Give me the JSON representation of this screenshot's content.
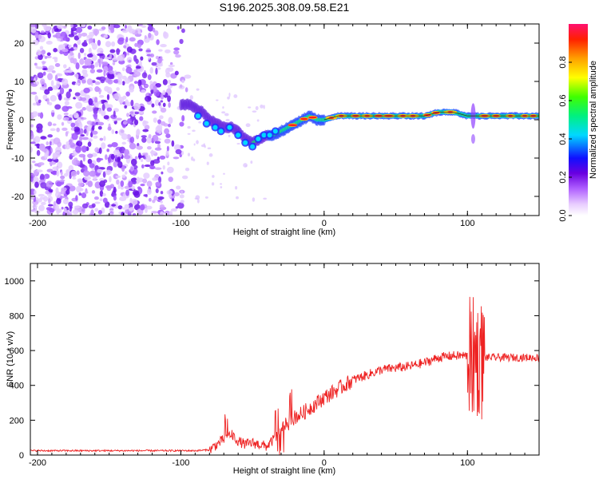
{
  "title": "S196.2025.308.09.58.E21",
  "chart_data": [
    {
      "type": "heatmap",
      "xlabel": "Height of straight line (km)",
      "ylabel": "Frequency (Hz)",
      "xlim": [
        -205,
        150
      ],
      "ylim": [
        -25,
        25
      ],
      "xticks": [
        -200,
        -100,
        0,
        100
      ],
      "yticks": [
        -20,
        -10,
        0,
        10,
        20
      ],
      "colorbar": {
        "label": "Normalized spectral amplitude",
        "range": [
          0,
          1
        ],
        "ticks": [
          0.0,
          0.2,
          0.4,
          0.6,
          0.8
        ],
        "tick_labels": [
          "0.0",
          "0.2",
          "0.4",
          "0.6",
          "0.8"
        ]
      },
      "ridge": [
        {
          "x": -100,
          "f": 4
        },
        {
          "x": -95,
          "f": 4
        },
        {
          "x": -90,
          "f": 3
        },
        {
          "x": -85,
          "f": 2
        },
        {
          "x": -80,
          "f": 0
        },
        {
          "x": -75,
          "f": -1
        },
        {
          "x": -70,
          "f": -2
        },
        {
          "x": -65,
          "f": -2
        },
        {
          "x": -60,
          "f": -3
        },
        {
          "x": -55,
          "f": -5
        },
        {
          "x": -50,
          "f": -6
        },
        {
          "x": -45,
          "f": -5
        },
        {
          "x": -40,
          "f": -4
        },
        {
          "x": -35,
          "f": -4
        },
        {
          "x": -30,
          "f": -3
        },
        {
          "x": -25,
          "f": -2
        },
        {
          "x": -20,
          "f": -1
        },
        {
          "x": -15,
          "f": 0
        },
        {
          "x": -10,
          "f": 1
        },
        {
          "x": -5,
          "f": 0
        },
        {
          "x": 0,
          "f": 0
        },
        {
          "x": 10,
          "f": 1
        },
        {
          "x": 20,
          "f": 1
        },
        {
          "x": 30,
          "f": 1
        },
        {
          "x": 40,
          "f": 1
        },
        {
          "x": 50,
          "f": 1
        },
        {
          "x": 60,
          "f": 1
        },
        {
          "x": 70,
          "f": 1
        },
        {
          "x": 80,
          "f": 2
        },
        {
          "x": 90,
          "f": 2
        },
        {
          "x": 100,
          "f": 1
        },
        {
          "x": 105,
          "f": 1
        },
        {
          "x": 110,
          "f": 1
        },
        {
          "x": 120,
          "f": 1
        },
        {
          "x": 130,
          "f": 1
        },
        {
          "x": 140,
          "f": 1
        },
        {
          "x": 150,
          "f": 1
        }
      ]
    },
    {
      "type": "line",
      "xlabel": "Height of straight line (km)",
      "ylabel": "SNR (10 * v/v)",
      "xlim": [
        -205,
        150
      ],
      "ylim": [
        0,
        1100
      ],
      "xticks": [
        -200,
        -100,
        0,
        100
      ],
      "yticks": [
        0,
        200,
        400,
        600,
        800,
        1000
      ],
      "series": [
        {
          "name": "SNR",
          "color": "#ee2222",
          "points": [
            {
              "x": -205,
              "y": 25
            },
            {
              "x": -200,
              "y": 25
            },
            {
              "x": -180,
              "y": 25
            },
            {
              "x": -160,
              "y": 25
            },
            {
              "x": -140,
              "y": 25
            },
            {
              "x": -120,
              "y": 25
            },
            {
              "x": -100,
              "y": 25
            },
            {
              "x": -90,
              "y": 25
            },
            {
              "x": -80,
              "y": 30
            },
            {
              "x": -75,
              "y": 60
            },
            {
              "x": -70,
              "y": 90
            },
            {
              "x": -65,
              "y": 120
            },
            {
              "x": -60,
              "y": 80
            },
            {
              "x": -55,
              "y": 60
            },
            {
              "x": -50,
              "y": 70
            },
            {
              "x": -45,
              "y": 60
            },
            {
              "x": -40,
              "y": 50
            },
            {
              "x": -35,
              "y": 90
            },
            {
              "x": -30,
              "y": 150
            },
            {
              "x": -25,
              "y": 180
            },
            {
              "x": -20,
              "y": 220
            },
            {
              "x": -15,
              "y": 240
            },
            {
              "x": -10,
              "y": 270
            },
            {
              "x": -5,
              "y": 300
            },
            {
              "x": 0,
              "y": 330
            },
            {
              "x": 10,
              "y": 380
            },
            {
              "x": 20,
              "y": 430
            },
            {
              "x": 30,
              "y": 460
            },
            {
              "x": 40,
              "y": 490
            },
            {
              "x": 50,
              "y": 500
            },
            {
              "x": 60,
              "y": 510
            },
            {
              "x": 70,
              "y": 530
            },
            {
              "x": 80,
              "y": 560
            },
            {
              "x": 90,
              "y": 570
            },
            {
              "x": 100,
              "y": 570
            },
            {
              "x": 110,
              "y": 560
            },
            {
              "x": 120,
              "y": 560
            },
            {
              "x": 130,
              "y": 560
            },
            {
              "x": 140,
              "y": 560
            },
            {
              "x": 150,
              "y": 560
            }
          ]
        }
      ]
    }
  ]
}
